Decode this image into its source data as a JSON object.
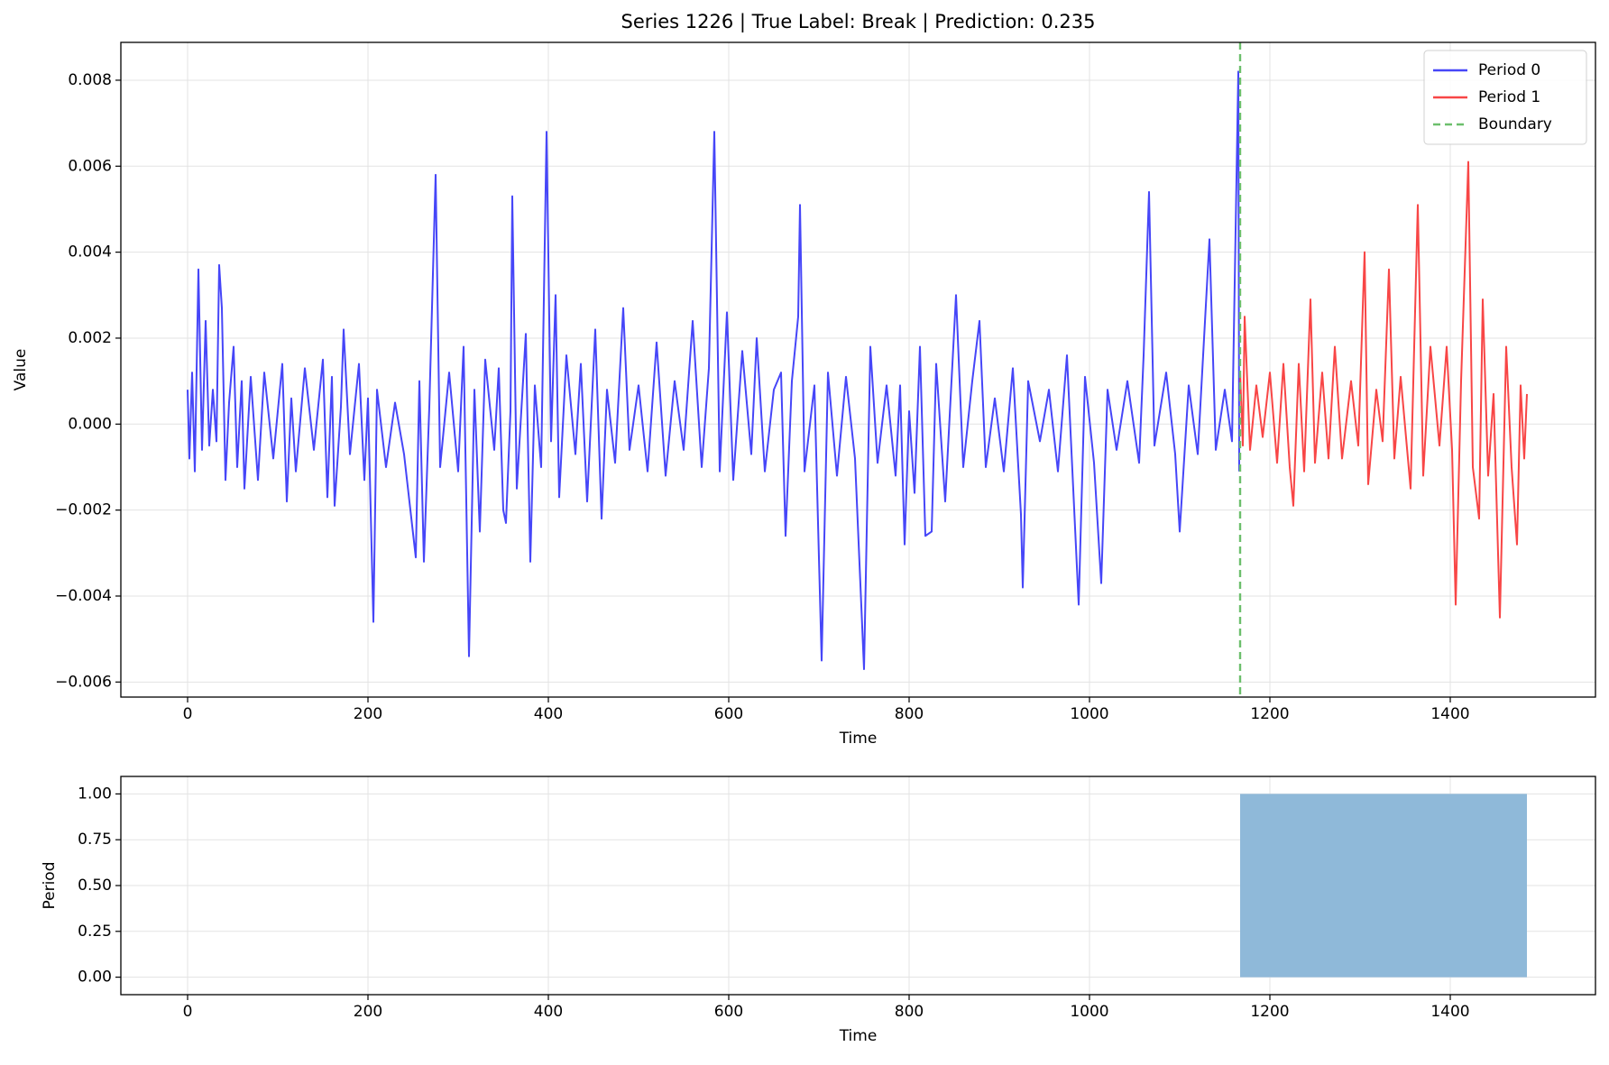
{
  "chart_data": [
    {
      "type": "line",
      "title": "Series 1226 | True Label: Break | Prediction: 0.235",
      "xlabel": "Time",
      "ylabel": "Value",
      "xlim": [
        -74,
        1561
      ],
      "ylim": [
        -0.00635,
        0.00888
      ],
      "xticks": [
        0,
        200,
        400,
        600,
        800,
        1000,
        1200,
        1400
      ],
      "yticks": [
        {
          "value": -0.006,
          "label": "−0.006"
        },
        {
          "value": -0.004,
          "label": "−0.004"
        },
        {
          "value": -0.002,
          "label": "−0.002"
        },
        {
          "value": 0,
          "label": "0.000"
        },
        {
          "value": 0.002,
          "label": "0.002"
        },
        {
          "value": 0.004,
          "label": "0.004"
        },
        {
          "value": 0.006,
          "label": "0.006"
        },
        {
          "value": 0.008,
          "label": "0.008"
        }
      ],
      "grid": true,
      "legend": "upper right",
      "series": [
        {
          "name": "Period 0",
          "color": "#4646f8",
          "x": [
            0,
            2,
            5,
            8,
            12,
            16,
            20,
            24,
            28,
            32,
            35,
            38,
            42,
            46,
            51,
            55,
            60,
            63,
            70,
            78,
            85,
            95,
            105,
            110,
            115,
            120,
            130,
            140,
            150,
            155,
            160,
            163,
            170,
            173,
            180,
            190,
            196,
            200,
            206,
            210,
            220,
            230,
            240,
            253,
            257,
            262,
            268,
            275,
            280,
            290,
            300,
            306,
            312,
            318,
            324,
            330,
            340,
            345,
            350,
            353,
            358,
            360,
            365,
            375,
            380,
            385,
            392,
            398,
            403,
            408,
            412,
            420,
            430,
            436,
            443,
            452,
            459,
            465,
            474,
            483,
            490,
            500,
            510,
            520,
            530,
            540,
            550,
            560,
            570,
            578,
            584,
            590,
            598,
            605,
            615,
            625,
            631,
            640,
            650,
            658,
            663,
            670,
            677,
            679,
            684,
            695,
            703,
            710,
            720,
            730,
            740,
            750,
            757,
            765,
            775,
            785,
            790,
            795,
            800,
            806,
            812,
            818,
            825,
            830,
            840,
            852,
            860,
            870,
            878,
            885,
            895,
            905,
            915,
            924,
            926,
            932,
            945,
            955,
            965,
            975,
            988,
            995,
            1005,
            1013,
            1020,
            1030,
            1042,
            1055,
            1060,
            1066,
            1072,
            1085,
            1095,
            1100,
            1110,
            1120,
            1133,
            1140,
            1150,
            1158,
            1165,
            1166
          ],
          "values": [
            0.0008,
            -0.0008,
            0.0012,
            -0.0011,
            0.0036,
            -0.0006,
            0.0024,
            -0.0005,
            0.0008,
            -0.0004,
            0.0037,
            0.0027,
            -0.0013,
            0.0005,
            0.0018,
            -0.001,
            0.001,
            -0.0015,
            0.0011,
            -0.0013,
            0.0012,
            -0.0008,
            0.0014,
            -0.0018,
            0.0006,
            -0.0011,
            0.0013,
            -0.0006,
            0.0015,
            -0.0017,
            0.0011,
            -0.0019,
            0.0004,
            0.0022,
            -0.0007,
            0.0014,
            -0.0013,
            0.0006,
            -0.0046,
            0.0008,
            -0.001,
            0.0005,
            -0.0007,
            -0.0031,
            0.001,
            -0.0032,
            0.0004,
            0.0058,
            -0.001,
            0.0012,
            -0.0011,
            0.0018,
            -0.0054,
            0.0008,
            -0.0025,
            0.0015,
            -0.0006,
            0.0013,
            -0.002,
            -0.0023,
            0.0003,
            0.0053,
            -0.0015,
            0.0021,
            -0.0032,
            0.0009,
            -0.001,
            0.0068,
            -0.0004,
            0.003,
            -0.0017,
            0.0016,
            -0.0007,
            0.0014,
            -0.0018,
            0.0022,
            -0.0022,
            0.0008,
            -0.0009,
            0.0027,
            -0.0006,
            0.0009,
            -0.0011,
            0.0019,
            -0.0012,
            0.001,
            -0.0006,
            0.0024,
            -0.001,
            0.0013,
            0.0068,
            -0.0011,
            0.0026,
            -0.0013,
            0.0017,
            -0.0007,
            0.002,
            -0.0011,
            0.0008,
            0.0012,
            -0.0026,
            0.001,
            0.0025,
            0.0051,
            -0.0011,
            0.0009,
            -0.0055,
            0.0012,
            -0.0012,
            0.0011,
            -0.0008,
            -0.0057,
            0.0018,
            -0.0009,
            0.0009,
            -0.0012,
            0.0009,
            -0.0028,
            0.0003,
            -0.0016,
            0.0018,
            -0.0026,
            -0.0025,
            0.0014,
            -0.0018,
            0.003,
            -0.001,
            0.001,
            0.0024,
            -0.001,
            0.0006,
            -0.0011,
            0.0013,
            -0.0021,
            -0.0038,
            0.001,
            -0.0004,
            0.0008,
            -0.0011,
            0.0016,
            -0.0042,
            0.0011,
            -0.0009,
            -0.0037,
            0.0008,
            -0.0006,
            0.001,
            -0.0009,
            0.0016,
            0.0054,
            -0.0005,
            0.0012,
            -0.0007,
            -0.0025,
            0.0009,
            -0.0007,
            0.0043,
            -0.0006,
            0.0008,
            -0.0004,
            0.0082,
            -0.0011
          ]
        },
        {
          "name": "Period 1",
          "color": "#f84646",
          "x": [
            1167,
            1170,
            1172,
            1178,
            1185,
            1192,
            1200,
            1208,
            1215,
            1222,
            1226,
            1232,
            1238,
            1245,
            1250,
            1258,
            1265,
            1272,
            1280,
            1290,
            1298,
            1305,
            1309,
            1318,
            1325,
            1332,
            1338,
            1345,
            1356,
            1364,
            1370,
            1378,
            1388,
            1396,
            1402,
            1406,
            1412,
            1420,
            1425,
            1432,
            1436,
            1442,
            1448,
            1455,
            1462,
            1468,
            1474,
            1478,
            1482,
            1485
          ],
          "values": [
            0.0012,
            -0.0005,
            0.0025,
            -0.0006,
            0.0009,
            -0.0003,
            0.0012,
            -0.0009,
            0.0014,
            -0.001,
            -0.0019,
            0.0014,
            -0.0011,
            0.0029,
            -0.0009,
            0.0012,
            -0.0008,
            0.0018,
            -0.0008,
            0.001,
            -0.0005,
            0.004,
            -0.0014,
            0.0008,
            -0.0004,
            0.0036,
            -0.0008,
            0.0011,
            -0.0015,
            0.0051,
            -0.0012,
            0.0018,
            -0.0005,
            0.0018,
            -0.0006,
            -0.0042,
            0.001,
            0.0061,
            -0.001,
            -0.0022,
            0.0029,
            -0.0012,
            0.0007,
            -0.0045,
            0.0018,
            -0.001,
            -0.0028,
            0.0009,
            -0.0008,
            0.0007
          ]
        }
      ],
      "vlines": [
        {
          "name": "Boundary",
          "x": 1167,
          "color": "#6cbf6c",
          "linestyle": "dashed"
        }
      ]
    },
    {
      "type": "area",
      "xlabel": "Time",
      "ylabel": "Period",
      "xlim": [
        -74,
        1561
      ],
      "ylim": [
        -0.0955,
        1.0955
      ],
      "xticks": [
        0,
        200,
        400,
        600,
        800,
        1000,
        1200,
        1400
      ],
      "yticks": [
        {
          "value": 0,
          "label": "0.00"
        },
        {
          "value": 0.25,
          "label": "0.25"
        },
        {
          "value": 0.5,
          "label": "0.50"
        },
        {
          "value": 0.75,
          "label": "0.75"
        },
        {
          "value": 1,
          "label": "1.00"
        }
      ],
      "grid": true,
      "series": [
        {
          "color": "#8fb9d9",
          "x": [
            1167,
            1485
          ],
          "values": [
            1,
            1
          ]
        }
      ]
    }
  ]
}
